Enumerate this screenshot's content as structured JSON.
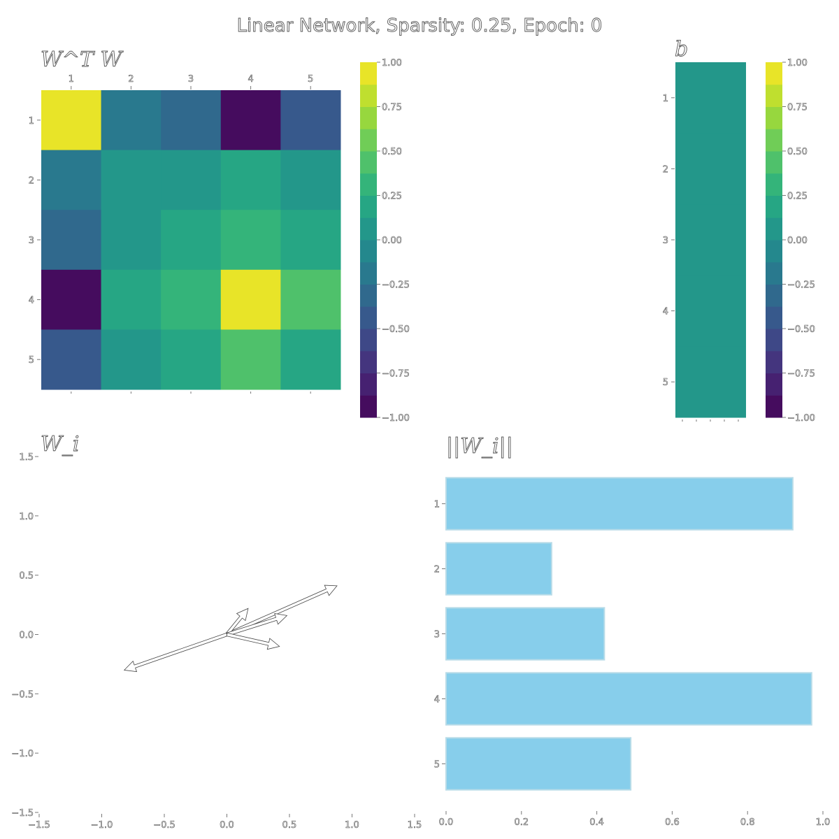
{
  "figure": {
    "title": "Linear Network, Sparsity: 0.25, Epoch: 0"
  },
  "panels": {
    "wtw_title": "W^T W",
    "b_title": "b",
    "wi_title": "W_i",
    "norm_title": "||W_i||"
  },
  "colorbar": {
    "ticks": [
      "1.00",
      "0.75",
      "0.50",
      "0.25",
      "0.00",
      "−0.25",
      "−0.50",
      "−0.75",
      "−1.00"
    ]
  },
  "colors": {
    "bar_fill": "#87ceeb",
    "bar_edge": "#b8dce8",
    "arrow_stroke": "#444444"
  },
  "chart_data": [
    {
      "type": "heatmap",
      "name": "W^T W",
      "x_categories": [
        "1",
        "2",
        "3",
        "4",
        "5"
      ],
      "y_categories": [
        "1",
        "2",
        "3",
        "4",
        "5"
      ],
      "colormap": "viridis",
      "vmin": -1.0,
      "vmax": 1.0,
      "values": [
        [
          0.88,
          -0.18,
          -0.28,
          -0.92,
          -0.42
        ],
        [
          -0.18,
          0.07,
          0.07,
          0.18,
          0.07
        ],
        [
          -0.28,
          0.07,
          0.18,
          0.28,
          0.18
        ],
        [
          -0.92,
          0.18,
          0.28,
          0.97,
          0.46
        ],
        [
          -0.42,
          0.07,
          0.18,
          0.46,
          0.18
        ]
      ]
    },
    {
      "type": "heatmap",
      "name": "b",
      "x_categories": [],
      "y_categories": [
        "1",
        "2",
        "3",
        "4",
        "5"
      ],
      "colormap": "viridis",
      "vmin": -1.0,
      "vmax": 1.0,
      "values": [
        [
          0.0
        ],
        [
          0.0
        ],
        [
          0.0
        ],
        [
          0.0
        ],
        [
          0.0
        ]
      ]
    },
    {
      "type": "scatter",
      "name": "W_i",
      "xlim": [
        -1.5,
        1.5
      ],
      "ylim": [
        -1.5,
        1.5
      ],
      "x_ticks": [
        "−1.5",
        "−1.0",
        "−0.5",
        "0.0",
        "0.5",
        "1.0",
        "1.5"
      ],
      "y_ticks": [
        "1.5",
        "1.0",
        "0.5",
        "0.0",
        "−0.5",
        "−1.0",
        "−1.5"
      ],
      "vectors": [
        {
          "x": 0.88,
          "y": 0.41
        },
        {
          "x": 0.17,
          "y": 0.22
        },
        {
          "x": 0.48,
          "y": 0.16
        },
        {
          "x": -0.82,
          "y": -0.3
        },
        {
          "x": 0.42,
          "y": -0.1
        }
      ]
    },
    {
      "type": "bar",
      "name": "||W_i||",
      "orientation": "horizontal",
      "categories": [
        "1",
        "2",
        "3",
        "4",
        "5"
      ],
      "values": [
        0.92,
        0.28,
        0.42,
        0.97,
        0.49
      ],
      "xlim": [
        0.0,
        1.0
      ],
      "x_ticks": [
        "0.0",
        "0.2",
        "0.4",
        "0.6",
        "0.8",
        "1.0"
      ]
    }
  ]
}
